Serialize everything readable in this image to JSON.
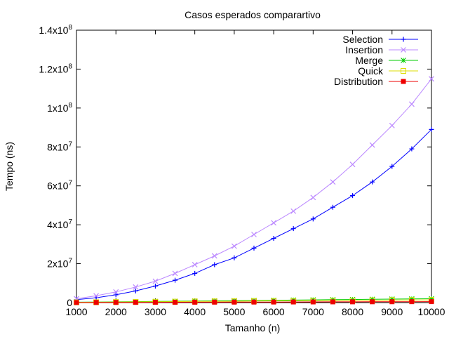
{
  "chart_data": {
    "type": "line",
    "title": "Casos esperados comparartivo",
    "xlabel": "Tamanho (n)",
    "ylabel": "Tempo (ns)",
    "xlim": [
      1000,
      10000
    ],
    "ylim": [
      0,
      140000000
    ],
    "x_ticks": [
      1000,
      2000,
      3000,
      4000,
      5000,
      6000,
      7000,
      8000,
      9000,
      10000
    ],
    "y_ticks": [
      {
        "value": 0,
        "mant": "0",
        "exp": ""
      },
      {
        "value": 20000000,
        "mant": "2x10",
        "exp": "7"
      },
      {
        "value": 40000000,
        "mant": "4x10",
        "exp": "7"
      },
      {
        "value": 60000000,
        "mant": "6x10",
        "exp": "7"
      },
      {
        "value": 80000000,
        "mant": "8x10",
        "exp": "7"
      },
      {
        "value": 100000000,
        "mant": "1x10",
        "exp": "8"
      },
      {
        "value": 120000000,
        "mant": "1.2x10",
        "exp": "8"
      },
      {
        "value": 140000000,
        "mant": "1.4x10",
        "exp": "8"
      }
    ],
    "grid": false,
    "legend_position": "top-right",
    "x": [
      1000,
      1500,
      2000,
      2500,
      3000,
      3500,
      4000,
      4500,
      5000,
      5500,
      6000,
      6500,
      7000,
      7500,
      8000,
      8500,
      9000,
      9500,
      10000
    ],
    "series": [
      {
        "name": "Selection",
        "color": "#0000ff",
        "marker": "plus",
        "values": [
          1500000,
          2500000,
          4000000,
          6000000,
          8500000,
          11500000,
          15000000,
          19500000,
          23000000,
          28000000,
          33000000,
          38000000,
          43000000,
          49000000,
          55000000,
          62000000,
          70000000,
          79000000,
          89000000
        ]
      },
      {
        "name": "Insertion",
        "color": "#bb88ff",
        "marker": "x",
        "values": [
          2000000,
          3500000,
          5500000,
          8000000,
          11000000,
          15000000,
          19500000,
          24000000,
          29000000,
          35000000,
          41000000,
          47000000,
          54000000,
          62000000,
          71000000,
          81000000,
          91000000,
          102000000,
          115000000
        ]
      },
      {
        "name": "Merge",
        "color": "#00cc00",
        "marker": "star",
        "values": [
          200000,
          300000,
          400000,
          500000,
          600000,
          700000,
          800000,
          900000,
          1000000,
          1100000,
          1200000,
          1300000,
          1400000,
          1500000,
          1600000,
          1700000,
          1800000,
          1900000,
          2000000
        ]
      },
      {
        "name": "Quick",
        "color": "#dddd00",
        "marker": "square-open",
        "values": [
          150000,
          200000,
          300000,
          350000,
          450000,
          500000,
          600000,
          650000,
          700000,
          800000,
          850000,
          900000,
          1000000,
          1050000,
          1100000,
          1200000,
          1300000,
          1350000,
          1400000
        ]
      },
      {
        "name": "Distribution",
        "color": "#ee0000",
        "marker": "square-filled",
        "values": [
          50000,
          80000,
          100000,
          120000,
          150000,
          180000,
          200000,
          230000,
          250000,
          280000,
          300000,
          330000,
          350000,
          380000,
          400000,
          430000,
          450000,
          480000,
          500000
        ]
      }
    ]
  }
}
